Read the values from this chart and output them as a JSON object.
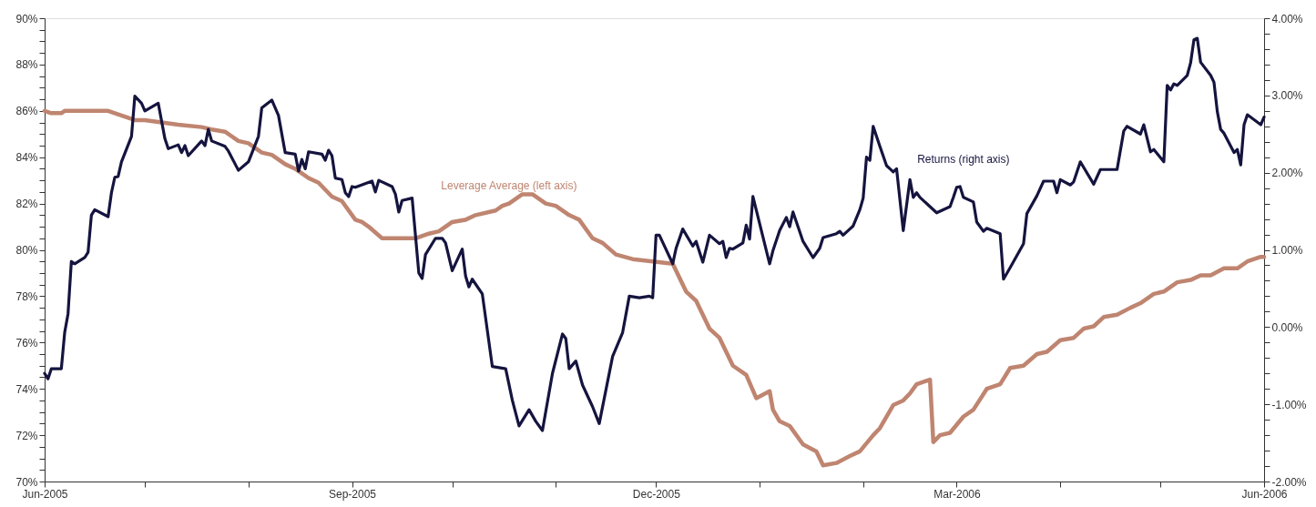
{
  "chart_data": {
    "type": "line",
    "xlim": [
      "2005-06-01",
      "2006-06-01"
    ],
    "xticks": [
      {
        "value": "2005-06-01",
        "label": "Jun-2005"
      },
      {
        "value": "2005-07-01",
        "label": null
      },
      {
        "value": "2005-08-01",
        "label": null
      },
      {
        "value": "2005-09-01",
        "label": "Sep-2005"
      },
      {
        "value": "2005-10-01",
        "label": null
      },
      {
        "value": "2005-11-01",
        "label": null
      },
      {
        "value": "2005-12-01",
        "label": "Dec-2005"
      },
      {
        "value": "2006-01-01",
        "label": null
      },
      {
        "value": "2006-02-01",
        "label": null
      },
      {
        "value": "2006-03-01",
        "label": "Mar-2006"
      },
      {
        "value": "2006-04-01",
        "label": null
      },
      {
        "value": "2006-05-01",
        "label": null
      },
      {
        "value": "2006-06-01",
        "label": "Jun-2006"
      }
    ],
    "ylim": [
      70,
      90
    ],
    "yticks": [
      {
        "value": 70,
        "label": "70%"
      },
      {
        "value": 70.5,
        "label": null
      },
      {
        "value": 71,
        "label": null
      },
      {
        "value": 71.5,
        "label": null
      },
      {
        "value": 72,
        "label": "72%"
      },
      {
        "value": 72.5,
        "label": null
      },
      {
        "value": 73,
        "label": null
      },
      {
        "value": 73.5,
        "label": null
      },
      {
        "value": 74,
        "label": "74%"
      },
      {
        "value": 74.5,
        "label": null
      },
      {
        "value": 75,
        "label": null
      },
      {
        "value": 75.5,
        "label": null
      },
      {
        "value": 76,
        "label": "76%"
      },
      {
        "value": 76.5,
        "label": null
      },
      {
        "value": 77,
        "label": null
      },
      {
        "value": 77.5,
        "label": null
      },
      {
        "value": 78,
        "label": "78%"
      },
      {
        "value": 78.5,
        "label": null
      },
      {
        "value": 79,
        "label": null
      },
      {
        "value": 79.5,
        "label": null
      },
      {
        "value": 80,
        "label": "80%"
      },
      {
        "value": 80.5,
        "label": null
      },
      {
        "value": 81,
        "label": null
      },
      {
        "value": 81.5,
        "label": null
      },
      {
        "value": 82,
        "label": "82%"
      },
      {
        "value": 82.5,
        "label": null
      },
      {
        "value": 83,
        "label": null
      },
      {
        "value": 83.5,
        "label": null
      },
      {
        "value": 84,
        "label": "84%"
      },
      {
        "value": 84.5,
        "label": null
      },
      {
        "value": 85,
        "label": null
      },
      {
        "value": 85.5,
        "label": null
      },
      {
        "value": 86,
        "label": "86%"
      },
      {
        "value": 86.5,
        "label": null
      },
      {
        "value": 87,
        "label": null
      },
      {
        "value": 87.5,
        "label": null
      },
      {
        "value": 88,
        "label": "88%"
      },
      {
        "value": 88.5,
        "label": null
      },
      {
        "value": 89,
        "label": null
      },
      {
        "value": 89.5,
        "label": null
      },
      {
        "value": 90,
        "label": "90%"
      }
    ],
    "y2lim": [
      -2,
      4
    ],
    "y2ticks": [
      {
        "value": -2,
        "label": "-2.00%"
      },
      {
        "value": -1.8,
        "label": null
      },
      {
        "value": -1.6,
        "label": null
      },
      {
        "value": -1.4,
        "label": null
      },
      {
        "value": -1.2,
        "label": null
      },
      {
        "value": -1,
        "label": "-1.00%"
      },
      {
        "value": -0.8,
        "label": null
      },
      {
        "value": -0.6,
        "label": null
      },
      {
        "value": -0.4,
        "label": null
      },
      {
        "value": -0.2,
        "label": null
      },
      {
        "value": 0,
        "label": "0.00%"
      },
      {
        "value": 0.2,
        "label": null
      },
      {
        "value": 0.4,
        "label": null
      },
      {
        "value": 0.6,
        "label": null
      },
      {
        "value": 0.8,
        "label": null
      },
      {
        "value": 1,
        "label": "1.00%"
      },
      {
        "value": 1.2,
        "label": null
      },
      {
        "value": 1.4,
        "label": null
      },
      {
        "value": 1.6,
        "label": null
      },
      {
        "value": 1.8,
        "label": null
      },
      {
        "value": 2,
        "label": "2.00%"
      },
      {
        "value": 2.2,
        "label": null
      },
      {
        "value": 2.4,
        "label": null
      },
      {
        "value": 2.6,
        "label": null
      },
      {
        "value": 2.8,
        "label": null
      },
      {
        "value": 3,
        "label": "3.00%"
      },
      {
        "value": 3.2,
        "label": null
      },
      {
        "value": 3.4,
        "label": null
      },
      {
        "value": 3.6,
        "label": null
      },
      {
        "value": 3.8,
        "label": null
      },
      {
        "value": 4,
        "label": "4.00%"
      }
    ],
    "grid": false,
    "marker": "none",
    "line_style": "solid",
    "series": [
      {
        "name": "Leverage Average (left axis)",
        "color": "#bf8570",
        "axis": "y",
        "x": [
          "2005-06-01",
          "2005-06-03",
          "2005-06-06",
          "2005-06-07",
          "2005-06-15",
          "2005-06-20",
          "2005-06-22",
          "2005-06-24",
          "2005-06-28",
          "2005-07-01",
          "2005-07-06",
          "2005-07-11",
          "2005-07-18",
          "2005-07-21",
          "2005-07-25",
          "2005-07-29",
          "2005-08-01",
          "2005-08-05",
          "2005-08-08",
          "2005-08-12",
          "2005-08-15",
          "2005-08-19",
          "2005-08-22",
          "2005-08-26",
          "2005-08-29",
          "2005-09-02",
          "2005-09-04",
          "2005-09-06",
          "2005-09-10",
          "2005-09-14",
          "2005-09-20",
          "2005-09-24",
          "2005-09-27",
          "2005-10-01",
          "2005-10-05",
          "2005-10-08",
          "2005-10-14",
          "2005-10-16",
          "2005-10-18",
          "2005-10-22",
          "2005-10-25",
          "2005-10-29",
          "2005-11-01",
          "2005-11-05",
          "2005-11-08",
          "2005-11-12",
          "2005-11-15",
          "2005-11-19",
          "2005-11-24",
          "2005-11-30",
          "2005-12-06",
          "2005-12-10",
          "2005-12-13",
          "2005-12-17",
          "2005-12-20",
          "2005-12-24",
          "2005-12-28",
          "2005-12-31",
          "2006-01-04",
          "2006-01-05",
          "2006-01-07",
          "2006-01-10",
          "2006-01-14",
          "2006-01-18",
          "2006-01-20",
          "2006-01-24",
          "2006-01-28",
          "2006-01-31",
          "2006-02-04",
          "2006-02-06",
          "2006-02-10",
          "2006-02-13",
          "2006-02-15",
          "2006-02-17",
          "2006-02-21",
          "2006-02-22",
          "2006-02-24",
          "2006-02-27",
          "2006-03-03",
          "2006-03-06",
          "2006-03-10",
          "2006-03-14",
          "2006-03-17",
          "2006-03-21",
          "2006-03-25",
          "2006-03-28",
          "2006-04-01",
          "2006-04-05",
          "2006-04-08",
          "2006-04-11",
          "2006-04-14",
          "2006-04-18",
          "2006-04-22",
          "2006-04-25",
          "2006-04-29",
          "2006-05-02",
          "2006-05-06",
          "2006-05-10",
          "2006-05-13",
          "2006-05-16",
          "2006-05-20",
          "2006-05-24",
          "2006-05-27",
          "2006-05-31",
          "2006-06-01"
        ],
        "values": [
          86.0,
          85.9,
          85.9,
          86.0,
          86.0,
          86.0,
          85.9,
          85.8,
          85.6,
          85.6,
          85.5,
          85.4,
          85.3,
          85.2,
          85.1,
          84.7,
          84.6,
          84.2,
          84.1,
          83.7,
          83.5,
          83.1,
          82.9,
          82.3,
          82.1,
          81.3,
          81.2,
          81.0,
          80.5,
          80.5,
          80.5,
          80.7,
          80.8,
          81.2,
          81.3,
          81.5,
          81.7,
          81.9,
          82.0,
          82.4,
          82.4,
          82.0,
          81.9,
          81.5,
          81.3,
          80.5,
          80.3,
          79.8,
          79.6,
          79.5,
          79.4,
          78.2,
          77.8,
          76.6,
          76.2,
          75.0,
          74.6,
          73.6,
          73.9,
          73.1,
          72.6,
          72.4,
          71.6,
          71.3,
          70.7,
          70.8,
          71.1,
          71.3,
          72.0,
          72.3,
          73.3,
          73.5,
          73.8,
          74.2,
          74.4,
          71.7,
          72.0,
          72.1,
          72.8,
          73.1,
          74.0,
          74.2,
          74.9,
          75.0,
          75.5,
          75.6,
          76.1,
          76.2,
          76.6,
          76.7,
          77.1,
          77.2,
          77.5,
          77.7,
          78.1,
          78.2,
          78.6,
          78.7,
          78.9,
          78.9,
          79.2,
          79.2,
          79.5,
          79.7,
          79.7
        ]
      },
      {
        "name": "Returns (right axis)",
        "color": "#15143f",
        "axis": "y2",
        "x": [
          "2005-06-01",
          "2005-06-02",
          "2005-06-03",
          "2005-06-06",
          "2005-06-07",
          "2005-06-08",
          "2005-06-09",
          "2005-06-10",
          "2005-06-13",
          "2005-06-14",
          "2005-06-15",
          "2005-06-16",
          "2005-06-20",
          "2005-06-21",
          "2005-06-22",
          "2005-06-23",
          "2005-06-24",
          "2005-06-27",
          "2005-06-28",
          "2005-06-30",
          "2005-07-01",
          "2005-07-05",
          "2005-07-07",
          "2005-07-08",
          "2005-07-11",
          "2005-07-12",
          "2005-07-13",
          "2005-07-14",
          "2005-07-18",
          "2005-07-19",
          "2005-07-20",
          "2005-07-21",
          "2005-07-25",
          "2005-07-26",
          "2005-07-29",
          "2005-08-01",
          "2005-08-04",
          "2005-08-05",
          "2005-08-08",
          "2005-08-10",
          "2005-08-12",
          "2005-08-15",
          "2005-08-16",
          "2005-08-17",
          "2005-08-18",
          "2005-08-19",
          "2005-08-23",
          "2005-08-24",
          "2005-08-25",
          "2005-08-26",
          "2005-08-27",
          "2005-08-29",
          "2005-08-30",
          "2005-08-31",
          "2005-09-01",
          "2005-09-02",
          "2005-09-07",
          "2005-09-08",
          "2005-09-09",
          "2005-09-13",
          "2005-09-14",
          "2005-09-15",
          "2005-09-16",
          "2005-09-19",
          "2005-09-21",
          "2005-09-22",
          "2005-09-23",
          "2005-09-26",
          "2005-09-28",
          "2005-09-29",
          "2005-10-01",
          "2005-10-04",
          "2005-10-05",
          "2005-10-06",
          "2005-10-07",
          "2005-10-10",
          "2005-10-13",
          "2005-10-17",
          "2005-10-19",
          "2005-10-21",
          "2005-10-24",
          "2005-10-26",
          "2005-10-28",
          "2005-10-31",
          "2005-11-03",
          "2005-11-04",
          "2005-11-05",
          "2005-11-07",
          "2005-11-09",
          "2005-11-12",
          "2005-11-14",
          "2005-11-18",
          "2005-11-21",
          "2005-11-23",
          "2005-11-26",
          "2005-11-29",
          "2005-11-30",
          "2005-12-01",
          "2005-12-02",
          "2005-12-06",
          "2005-12-07",
          "2005-12-09",
          "2005-12-12",
          "2005-12-13",
          "2005-12-15",
          "2005-12-17",
          "2005-12-20",
          "2005-12-21",
          "2005-12-22",
          "2005-12-23",
          "2005-12-24",
          "2005-12-27",
          "2005-12-28",
          "2005-12-29",
          "2005-12-30",
          "2006-01-04",
          "2006-01-05",
          "2006-01-07",
          "2006-01-09",
          "2006-01-10",
          "2006-01-11",
          "2006-01-14",
          "2006-01-17",
          "2006-01-19",
          "2006-01-20",
          "2006-01-24",
          "2006-01-25",
          "2006-01-26",
          "2006-01-28",
          "2006-01-29",
          "2006-01-31",
          "2006-02-01",
          "2006-02-02",
          "2006-02-03",
          "2006-02-04",
          "2006-02-06",
          "2006-02-08",
          "2006-02-09",
          "2006-02-10",
          "2006-02-11",
          "2006-02-13",
          "2006-02-15",
          "2006-02-16",
          "2006-02-17",
          "2006-02-18",
          "2006-02-23",
          "2006-02-27",
          "2006-02-28",
          "2006-03-01",
          "2006-03-02",
          "2006-03-03",
          "2006-03-06",
          "2006-03-07",
          "2006-03-09",
          "2006-03-10",
          "2006-03-14",
          "2006-03-15",
          "2006-03-17",
          "2006-03-21",
          "2006-03-22",
          "2006-03-25",
          "2006-03-27",
          "2006-03-30",
          "2006-03-31",
          "2006-04-01",
          "2006-04-04",
          "2006-04-05",
          "2006-04-07",
          "2006-04-11",
          "2006-04-13",
          "2006-04-18",
          "2006-04-20",
          "2006-04-21",
          "2006-04-25",
          "2006-04-26",
          "2006-04-28",
          "2006-04-29",
          "2006-05-02",
          "2006-05-03",
          "2006-05-04",
          "2006-05-05",
          "2006-05-06",
          "2006-05-09",
          "2006-05-10",
          "2006-05-11",
          "2006-05-12",
          "2006-05-13",
          "2006-05-16",
          "2006-05-17",
          "2006-05-18",
          "2006-05-19",
          "2006-05-20",
          "2006-05-23",
          "2006-05-24",
          "2006-05-25",
          "2006-05-26",
          "2006-05-27",
          "2006-05-31",
          "2006-06-01"
        ],
        "values": [
          -0.6,
          -0.67,
          -0.54,
          -0.54,
          -0.07,
          0.17,
          0.85,
          0.82,
          0.9,
          0.97,
          1.45,
          1.52,
          1.43,
          1.74,
          1.94,
          1.95,
          2.14,
          2.47,
          2.99,
          2.9,
          2.8,
          2.9,
          2.44,
          2.31,
          2.36,
          2.26,
          2.35,
          2.22,
          2.41,
          2.35,
          2.56,
          2.41,
          2.34,
          2.28,
          2.03,
          2.14,
          2.47,
          2.84,
          2.94,
          2.74,
          2.26,
          2.24,
          2.02,
          2.17,
          2.05,
          2.27,
          2.24,
          2.16,
          2.29,
          2.22,
          1.93,
          1.91,
          1.74,
          1.69,
          1.82,
          1.81,
          1.89,
          1.75,
          1.9,
          1.82,
          1.72,
          1.49,
          1.64,
          1.67,
          0.7,
          0.63,
          0.94,
          1.15,
          1.15,
          1.09,
          0.73,
          1.01,
          0.66,
          0.52,
          0.62,
          0.43,
          -0.51,
          -0.54,
          -0.95,
          -1.28,
          -1.07,
          -1.22,
          -1.34,
          -0.6,
          -0.09,
          -0.15,
          -0.54,
          -0.44,
          -0.75,
          -1.03,
          -1.25,
          -0.38,
          -0.07,
          0.4,
          0.38,
          0.4,
          0.38,
          1.19,
          1.19,
          0.82,
          1.02,
          1.27,
          1.05,
          1.11,
          0.84,
          1.19,
          1.08,
          1.11,
          0.9,
          1.02,
          1.01,
          1.09,
          1.32,
          1.14,
          1.69,
          0.82,
          0.99,
          1.25,
          1.42,
          1.3,
          1.49,
          1.11,
          0.9,
          1.02,
          1.16,
          1.21,
          1.24,
          1.19,
          1.27,
          1.31,
          1.52,
          1.67,
          2.2,
          2.16,
          2.6,
          2.34,
          2.09,
          2.05,
          2.01,
          2.05,
          1.25,
          1.91,
          1.68,
          1.74,
          1.68,
          1.48,
          1.56,
          1.68,
          1.81,
          1.82,
          1.68,
          1.62,
          1.36,
          1.24,
          1.28,
          1.21,
          0.62,
          0.77,
          1.08,
          1.47,
          1.7,
          1.89,
          1.89,
          1.74,
          1.91,
          1.84,
          1.88,
          2.14,
          1.85,
          2.04,
          2.04,
          2.54,
          2.6,
          2.5,
          2.62,
          2.27,
          2.3,
          2.14,
          3.13,
          3.07,
          3.15,
          3.13,
          3.26,
          3.42,
          3.72,
          3.74,
          3.43,
          3.26,
          3.17,
          2.79,
          2.56,
          2.51,
          2.26,
          2.3,
          2.1,
          2.62,
          2.75,
          2.62,
          2.72
        ]
      }
    ]
  }
}
